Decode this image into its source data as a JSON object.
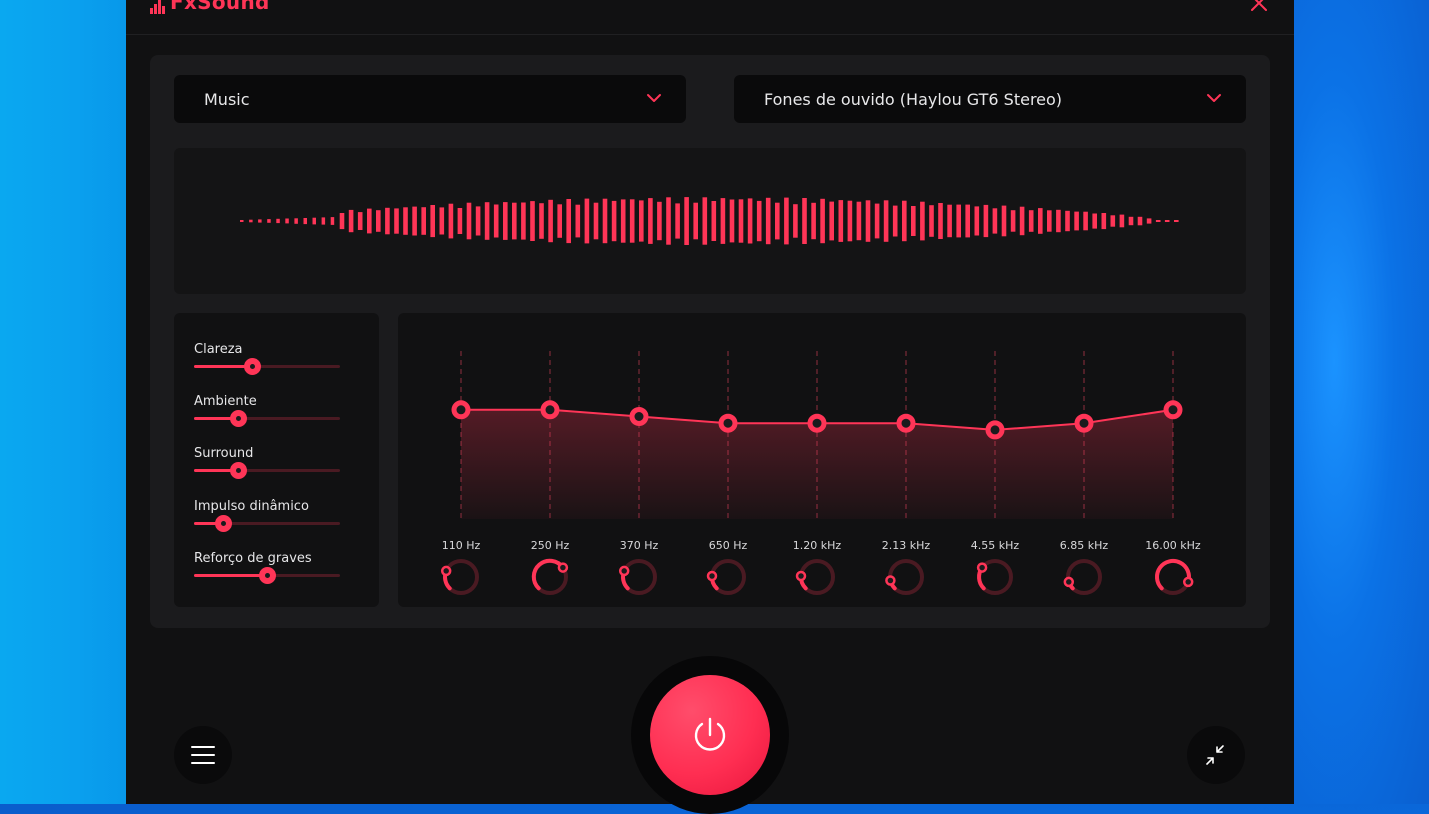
{
  "app": {
    "brand": "FxSound"
  },
  "preset_dropdown": {
    "value": "Music"
  },
  "output_dropdown": {
    "value": "Fones de ouvido (Haylou GT6 Stereo)"
  },
  "effects": [
    {
      "label": "Clareza",
      "value": 0.4
    },
    {
      "label": "Ambiente",
      "value": 0.3
    },
    {
      "label": "Surround",
      "value": 0.3
    },
    {
      "label": "Impulso dinâmico",
      "value": 0.2
    },
    {
      "label": "Reforço de graves",
      "value": 0.5
    }
  ],
  "equalizer": {
    "bands": [
      {
        "freq": "110 Hz",
        "level": 0.68
      },
      {
        "freq": "250 Hz",
        "level": 0.68
      },
      {
        "freq": "370 Hz",
        "level": 0.64
      },
      {
        "freq": "650 Hz",
        "level": 0.6
      },
      {
        "freq": "1.20 kHz",
        "level": 0.6
      },
      {
        "freq": "2.13 kHz",
        "level": 0.6
      },
      {
        "freq": "4.55 kHz",
        "level": 0.56
      },
      {
        "freq": "6.85 kHz",
        "level": 0.6
      },
      {
        "freq": "16.00 kHz",
        "level": 0.68
      }
    ],
    "knobs": [
      0.25,
      0.7,
      0.25,
      0.18,
      0.18,
      0.12,
      0.3,
      0.1,
      0.9
    ]
  },
  "colors": {
    "accent": "#ff3557",
    "panel": "#1b1b1d",
    "background": "#111112"
  },
  "icons": {
    "menu": "hamburger-icon",
    "minimize": "minimize-arrows-icon",
    "power": "power-icon",
    "close": "close-icon",
    "dropdown": "chevron-down-icon"
  }
}
